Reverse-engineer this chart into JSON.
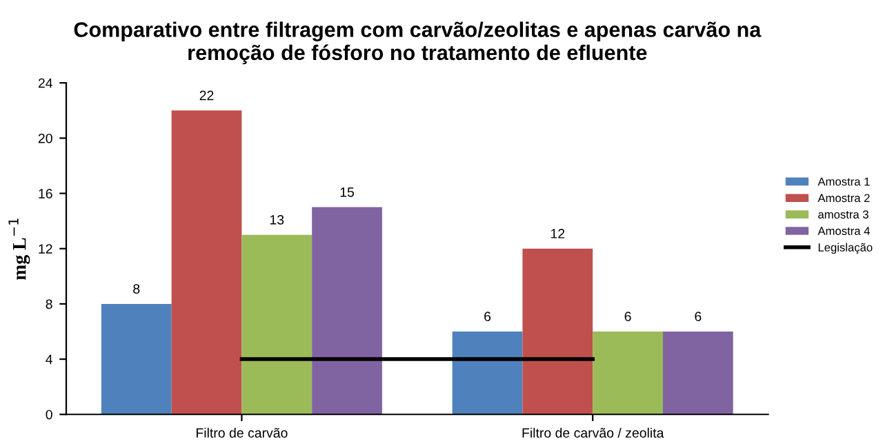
{
  "chart_data": {
    "type": "bar",
    "title": "Comparativo entre filtragem com carvão/zeolitas e apenas carvão na\nremoção de fósforo no tratamento de efluente",
    "ylabel": "mg L$^{−1}$",
    "categories": [
      "Filtro de carvão",
      "Filtro de carvão / zeolita"
    ],
    "series": [
      {
        "name": "Amostra 1",
        "color": "#4f81bd",
        "values": [
          8,
          6
        ],
        "value_labels": [
          "8",
          "6"
        ]
      },
      {
        "name": "Amostra 2",
        "color": "#c0504d",
        "values": [
          22,
          12
        ],
        "value_labels": [
          "22",
          "12"
        ]
      },
      {
        "name": "amostra 3",
        "color": "#9bbb59",
        "values": [
          13,
          6
        ],
        "value_labels": [
          "13",
          "6"
        ]
      },
      {
        "name": "Amostra 4",
        "color": "#8064a2",
        "values": [
          15,
          6
        ],
        "value_labels": [
          "15",
          "6"
        ]
      },
      {
        "name": "Legislação",
        "color": "#000000",
        "type": "line",
        "values": [
          4,
          4
        ]
      }
    ],
    "ylim": [
      0,
      24
    ],
    "yticks": [
      0,
      4,
      8,
      12,
      16,
      20,
      24
    ],
    "legend": "right",
    "grid": false
  }
}
